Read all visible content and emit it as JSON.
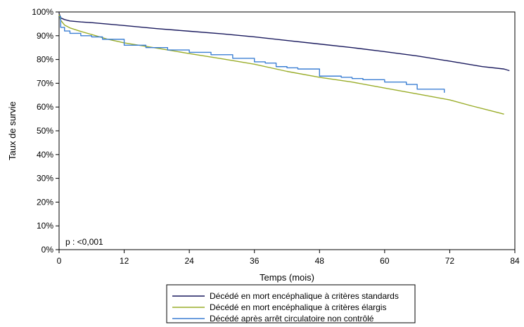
{
  "chart_data": {
    "type": "line",
    "xlabel": "Temps (mois)",
    "ylabel": "Taux de survie",
    "xlim": [
      0,
      84
    ],
    "ylim": [
      0,
      100
    ],
    "xticks": [
      0,
      12,
      24,
      36,
      48,
      60,
      72,
      84
    ],
    "xtick_labels": [
      "0",
      "12",
      "24",
      "36",
      "48",
      "60",
      "72",
      "84"
    ],
    "yticks": [
      0,
      10,
      20,
      30,
      40,
      50,
      60,
      70,
      80,
      90,
      100
    ],
    "ytick_labels": [
      "0%",
      "10%",
      "20%",
      "30%",
      "40%",
      "50%",
      "60%",
      "70%",
      "80%",
      "90%",
      "100%"
    ],
    "grid": false,
    "legend_position": "bottom",
    "annotation": "p : <0,001",
    "series": [
      {
        "name": "Décédé en mort encéphalique à critères standards",
        "color": "#1a1a5e",
        "step": false,
        "x": [
          0,
          0.3,
          1,
          2,
          4,
          6,
          12,
          18,
          24,
          30,
          36,
          42,
          48,
          54,
          60,
          66,
          72,
          78,
          82,
          83
        ],
        "y": [
          99.5,
          97.5,
          96.8,
          96.2,
          95.8,
          95.5,
          94.3,
          93.0,
          91.9,
          90.8,
          89.5,
          88.0,
          86.5,
          85.0,
          83.3,
          81.5,
          79.3,
          77.0,
          76.0,
          75.3
        ]
      },
      {
        "name": "Décédé en mort encéphalique à critères élargis",
        "color": "#9aad2a",
        "step": false,
        "x": [
          0,
          0.3,
          1,
          2,
          4,
          6,
          9,
          12,
          18,
          24,
          30,
          36,
          42,
          48,
          54,
          60,
          66,
          72,
          76,
          80,
          82
        ],
        "y": [
          99.0,
          96.5,
          94.5,
          93.3,
          91.8,
          90.5,
          88.5,
          87.0,
          84.8,
          82.5,
          80.3,
          78.0,
          75.0,
          72.5,
          70.5,
          68.0,
          65.5,
          63.0,
          60.5,
          58.2,
          57.0
        ]
      },
      {
        "name": "Décédé après arrêt circulatoire non contrôlé",
        "color": "#3b7fd4",
        "step": true,
        "x": [
          0,
          0.3,
          1,
          2,
          4,
          6,
          8,
          12,
          16,
          20,
          24,
          28,
          32,
          36,
          38,
          40,
          42,
          44,
          48,
          52,
          54,
          56,
          60,
          64,
          66,
          68,
          70,
          71
        ],
        "y": [
          98.0,
          93.5,
          92.0,
          91.0,
          90.0,
          89.5,
          88.5,
          86.0,
          85.0,
          84.0,
          83.0,
          82.0,
          80.5,
          79.0,
          78.5,
          77.0,
          76.5,
          76.0,
          73.0,
          72.5,
          72.0,
          71.5,
          70.5,
          69.5,
          67.5,
          67.5,
          67.5,
          66.0
        ]
      }
    ]
  }
}
